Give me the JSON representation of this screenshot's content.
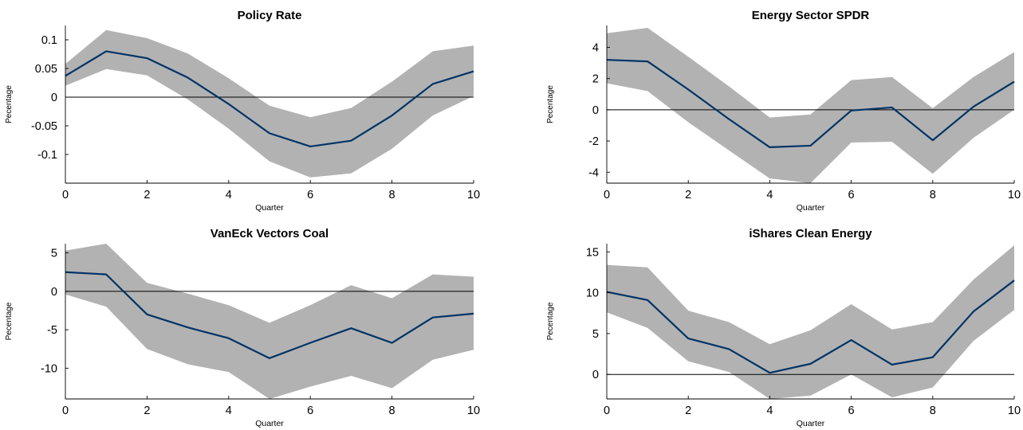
{
  "chart_data": [
    {
      "type": "line",
      "title": "Policy Rate",
      "xlabel": "Quarter",
      "ylabel": "Pecentage",
      "x": [
        0,
        1,
        2,
        3,
        4,
        5,
        6,
        7,
        8,
        9,
        10
      ],
      "xticks": [
        0,
        2,
        4,
        6,
        8,
        10
      ],
      "xtick_labels": [
        "0",
        "2",
        "4",
        "6",
        "8",
        "10"
      ],
      "yticks": [
        -0.1,
        -0.05,
        0,
        0.05,
        0.1
      ],
      "ytick_labels": [
        "-0.1",
        "-0.05",
        "0",
        "0.05",
        "0.1"
      ],
      "xlim": [
        0,
        10
      ],
      "ylim": [
        -0.15,
        0.125
      ],
      "series": [
        {
          "values": [
            0.037,
            0.08,
            0.068,
            0.034,
            -0.012,
            -0.063,
            -0.086,
            -0.076,
            -0.032,
            0.023,
            0.045
          ]
        }
      ],
      "band_upper": [
        0.058,
        0.117,
        0.103,
        0.076,
        0.033,
        -0.015,
        -0.035,
        -0.019,
        0.027,
        0.08,
        0.09
      ],
      "band_lower": [
        0.02,
        0.049,
        0.038,
        -0.004,
        -0.055,
        -0.112,
        -0.14,
        -0.133,
        -0.09,
        -0.032,
        0.002
      ],
      "zero_line": true,
      "grid": false
    },
    {
      "type": "line",
      "title": "Energy Sector SPDR",
      "xlabel": "Quarter",
      "ylabel": "Pecentage",
      "x": [
        0,
        1,
        2,
        3,
        4,
        5,
        6,
        7,
        8,
        9,
        10
      ],
      "xticks": [
        0,
        2,
        4,
        6,
        8,
        10
      ],
      "xtick_labels": [
        "0",
        "2",
        "4",
        "6",
        "8",
        "10"
      ],
      "yticks": [
        -4,
        -2,
        0,
        2,
        4
      ],
      "ytick_labels": [
        "-4",
        "-2",
        "0",
        "2",
        "4"
      ],
      "xlim": [
        0,
        10
      ],
      "ylim": [
        -4.7,
        5.4
      ],
      "series": [
        {
          "values": [
            3.2,
            3.1,
            1.3,
            -0.6,
            -2.4,
            -2.3,
            -0.05,
            0.15,
            -1.95,
            0.2,
            1.8
          ]
        }
      ],
      "band_upper": [
        4.9,
        5.25,
        3.4,
        1.5,
        -0.5,
        -0.3,
        1.9,
        2.1,
        0.1,
        2.1,
        3.7
      ],
      "band_lower": [
        1.7,
        1.2,
        -0.8,
        -2.6,
        -4.4,
        -4.7,
        -2.1,
        -2.05,
        -4.1,
        -1.8,
        0.0
      ],
      "zero_line": true,
      "grid": false
    },
    {
      "type": "line",
      "title": "VanEck Vectors Coal",
      "xlabel": "Quarter",
      "ylabel": "Pecentage",
      "x": [
        0,
        1,
        2,
        3,
        4,
        5,
        6,
        7,
        8,
        9,
        10
      ],
      "xticks": [
        0,
        2,
        4,
        6,
        8,
        10
      ],
      "xtick_labels": [
        "0",
        "2",
        "4",
        "6",
        "8",
        "10"
      ],
      "yticks": [
        -10,
        -5,
        0,
        5
      ],
      "ytick_labels": [
        "-10",
        "-5",
        "0",
        "5"
      ],
      "xlim": [
        0,
        10
      ],
      "ylim": [
        -14,
        6.2
      ],
      "series": [
        {
          "values": [
            2.5,
            2.2,
            -3.0,
            -4.7,
            -6.1,
            -8.7,
            -6.7,
            -4.8,
            -6.7,
            -3.4,
            -2.9
          ]
        }
      ],
      "band_upper": [
        5.3,
        6.2,
        1.1,
        -0.3,
        -1.8,
        -4.1,
        -1.8,
        0.8,
        -0.9,
        2.2,
        1.9
      ],
      "band_lower": [
        -0.4,
        -2.0,
        -7.5,
        -9.5,
        -10.5,
        -14.0,
        -12.4,
        -11.0,
        -12.6,
        -8.9,
        -7.6
      ],
      "zero_line": true,
      "grid": false
    },
    {
      "type": "line",
      "title": "iShares Clean Energy",
      "xlabel": "Quarter",
      "ylabel": "Pecentage",
      "x": [
        0,
        1,
        2,
        3,
        4,
        5,
        6,
        7,
        8,
        9,
        10
      ],
      "xticks": [
        0,
        2,
        4,
        6,
        8,
        10
      ],
      "xtick_labels": [
        "0",
        "2",
        "4",
        "6",
        "8",
        "10"
      ],
      "yticks": [
        0,
        5,
        10,
        15
      ],
      "ytick_labels": [
        "0",
        "5",
        "10",
        "15"
      ],
      "xlim": [
        0,
        10
      ],
      "ylim": [
        -3,
        16
      ],
      "series": [
        {
          "values": [
            10.1,
            9.1,
            4.4,
            3.1,
            0.2,
            1.3,
            4.2,
            1.2,
            2.1,
            7.7,
            11.5
          ]
        }
      ],
      "band_upper": [
        13.4,
        13.1,
        7.8,
        6.4,
        3.7,
        5.4,
        8.6,
        5.5,
        6.4,
        11.6,
        15.8
      ],
      "band_lower": [
        7.6,
        5.7,
        1.6,
        0.3,
        -3.0,
        -2.6,
        0.0,
        -2.8,
        -1.6,
        4.1,
        7.9
      ],
      "zero_line": true,
      "grid": false
    }
  ]
}
